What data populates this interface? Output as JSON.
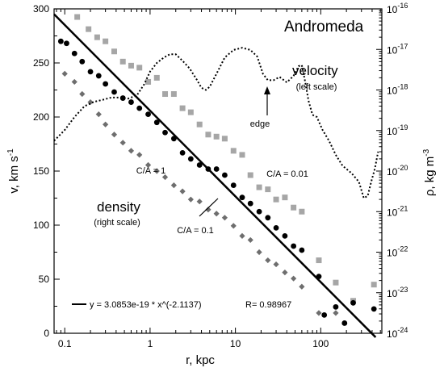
{
  "chart_data": {
    "type": "scatter",
    "title": "Andromeda",
    "xlabel": "r, kpc",
    "ylabel_left": "v, km s",
    "ylabel_left_exp": "-1",
    "ylabel_right": "ρ, kg m",
    "ylabel_right_exp": "-3",
    "x_scale": "log",
    "xlim": [
      0.075,
      520
    ],
    "ylim_left": [
      0,
      300
    ],
    "ylim_right_exp": [
      -24,
      -16
    ],
    "x_ticks": [
      {
        "value": 0.1,
        "label": "0.1"
      },
      {
        "value": 1,
        "label": "1"
      },
      {
        "value": 10,
        "label": "10"
      },
      {
        "value": 100,
        "label": "100"
      }
    ],
    "y_left_ticks": [
      "0",
      "50",
      "100",
      "150",
      "200",
      "250",
      "300"
    ],
    "y_right_ticks": [
      {
        "exp": -24,
        "label": "-24"
      },
      {
        "exp": -23,
        "label": "-23"
      },
      {
        "exp": -22,
        "label": "-22"
      },
      {
        "exp": -21,
        "label": "-21"
      },
      {
        "exp": -20,
        "label": "-20"
      },
      {
        "exp": -19,
        "label": "-19"
      },
      {
        "exp": -18,
        "label": "-18"
      },
      {
        "exp": -17,
        "label": "-17"
      },
      {
        "exp": -16,
        "label": "-16"
      }
    ],
    "tick_base": "10",
    "series": [
      {
        "name": "C/A = 0.01",
        "marker": "square",
        "color": "#a6a6a6",
        "axis": "right",
        "points": [
          [
            0.14,
            -16.2
          ],
          [
            0.19,
            -16.5
          ],
          [
            0.24,
            -16.7
          ],
          [
            0.3,
            -16.8
          ],
          [
            0.38,
            -17.05
          ],
          [
            0.48,
            -17.3
          ],
          [
            0.6,
            -17.4
          ],
          [
            0.75,
            -17.45
          ],
          [
            0.95,
            -17.8
          ],
          [
            1.2,
            -17.7
          ],
          [
            1.5,
            -18.1
          ],
          [
            1.9,
            -18.1
          ],
          [
            2.4,
            -18.45
          ],
          [
            3.0,
            -18.55
          ],
          [
            3.8,
            -18.85
          ],
          [
            4.8,
            -19.1
          ],
          [
            6.0,
            -19.15
          ],
          [
            7.5,
            -19.2
          ],
          [
            9.5,
            -19.5
          ],
          [
            12,
            -19.6
          ],
          [
            15,
            -20.1
          ],
          [
            19,
            -20.4
          ],
          [
            24,
            -20.45
          ],
          [
            30,
            -20.7
          ],
          [
            38,
            -20.65
          ],
          [
            48,
            -20.9
          ],
          [
            60,
            -21.0
          ],
          [
            95,
            -22.2
          ],
          [
            150,
            -22.75
          ],
          [
            240,
            -23.2
          ],
          [
            420,
            -22.8
          ]
        ]
      },
      {
        "name": "C/A = 0.1",
        "marker": "circle",
        "color": "#000000",
        "axis": "right",
        "points": [
          [
            0.09,
            -16.8
          ],
          [
            0.105,
            -16.85
          ],
          [
            0.13,
            -17.1
          ],
          [
            0.16,
            -17.3
          ],
          [
            0.2,
            -17.55
          ],
          [
            0.25,
            -17.65
          ],
          [
            0.3,
            -17.85
          ],
          [
            0.38,
            -18.05
          ],
          [
            0.48,
            -18.2
          ],
          [
            0.6,
            -18.3
          ],
          [
            0.75,
            -18.45
          ],
          [
            0.95,
            -18.6
          ],
          [
            1.2,
            -18.8
          ],
          [
            1.5,
            -19.05
          ],
          [
            1.9,
            -19.2
          ],
          [
            2.4,
            -19.55
          ],
          [
            3.0,
            -19.7
          ],
          [
            3.8,
            -19.85
          ],
          [
            4.8,
            -19.95
          ],
          [
            6.0,
            -19.95
          ],
          [
            7.5,
            -20.1
          ],
          [
            9.5,
            -20.35
          ],
          [
            12,
            -20.65
          ],
          [
            15,
            -20.8
          ],
          [
            19,
            -21.0
          ],
          [
            24,
            -21.15
          ],
          [
            30,
            -21.4
          ],
          [
            38,
            -21.6
          ],
          [
            48,
            -21.85
          ],
          [
            60,
            -21.95
          ],
          [
            95,
            -22.6
          ],
          [
            110,
            -23.55
          ],
          [
            150,
            -23.35
          ],
          [
            190,
            -23.75
          ],
          [
            240,
            -23.25
          ],
          [
            420,
            -23.4
          ]
        ]
      },
      {
        "name": "C/A = 1",
        "marker": "diamond",
        "color": "#6e6e6e",
        "axis": "right",
        "points": [
          [
            0.1,
            -17.6
          ],
          [
            0.13,
            -17.8
          ],
          [
            0.16,
            -18.1
          ],
          [
            0.2,
            -18.3
          ],
          [
            0.25,
            -18.6
          ],
          [
            0.3,
            -18.85
          ],
          [
            0.38,
            -19.1
          ],
          [
            0.48,
            -19.3
          ],
          [
            0.6,
            -19.5
          ],
          [
            0.75,
            -19.6
          ],
          [
            0.95,
            -19.85
          ],
          [
            1.2,
            -20.0
          ],
          [
            1.5,
            -20.15
          ],
          [
            1.9,
            -20.35
          ],
          [
            2.4,
            -20.5
          ],
          [
            3.0,
            -20.7
          ],
          [
            3.8,
            -20.75
          ],
          [
            4.8,
            -20.95
          ],
          [
            6.0,
            -21.05
          ],
          [
            7.5,
            -21.15
          ],
          [
            9.5,
            -21.35
          ],
          [
            12,
            -21.6
          ],
          [
            15,
            -21.7
          ],
          [
            19,
            -22.0
          ],
          [
            24,
            -22.2
          ],
          [
            30,
            -22.3
          ],
          [
            38,
            -22.5
          ],
          [
            48,
            -22.65
          ],
          [
            60,
            -22.85
          ],
          [
            95,
            -23.5
          ],
          [
            150,
            -23.5
          ]
        ]
      }
    ],
    "velocity_curve": {
      "name": "velocity",
      "axis": "left",
      "style": "dotted",
      "points": [
        [
          0.075,
          178
        ],
        [
          0.1,
          188
        ],
        [
          0.13,
          200
        ],
        [
          0.17,
          210
        ],
        [
          0.22,
          214
        ],
        [
          0.28,
          216
        ],
        [
          0.35,
          218
        ],
        [
          0.45,
          218
        ],
        [
          0.55,
          217
        ],
        [
          0.7,
          220
        ],
        [
          0.85,
          230
        ],
        [
          1.0,
          242
        ],
        [
          1.2,
          250
        ],
        [
          1.45,
          255
        ],
        [
          1.7,
          258
        ],
        [
          2.0,
          258
        ],
        [
          2.4,
          252
        ],
        [
          2.9,
          245
        ],
        [
          3.5,
          235
        ],
        [
          4.0,
          227
        ],
        [
          4.5,
          225
        ],
        [
          5.0,
          228
        ],
        [
          6.0,
          240
        ],
        [
          7.5,
          255
        ],
        [
          9.5,
          262
        ],
        [
          12,
          264
        ],
        [
          15,
          262
        ],
        [
          18,
          256
        ],
        [
          21,
          240
        ],
        [
          24,
          234
        ],
        [
          28,
          234
        ],
        [
          33,
          237
        ],
        [
          40,
          232
        ],
        [
          48,
          238
        ],
        [
          55,
          247
        ],
        [
          60,
          248
        ],
        [
          66,
          232
        ],
        [
          72,
          215
        ],
        [
          80,
          202
        ],
        [
          90,
          200
        ],
        [
          105,
          188
        ],
        [
          125,
          178
        ],
        [
          150,
          165
        ],
        [
          180,
          155
        ],
        [
          230,
          148
        ],
        [
          280,
          140
        ],
        [
          320,
          125
        ],
        [
          355,
          127
        ],
        [
          390,
          140
        ],
        [
          430,
          152
        ],
        [
          470,
          168
        ]
      ]
    },
    "fit_line": {
      "a": 3.0853e-19,
      "b": -2.1137,
      "x_range": [
        0.075,
        440
      ]
    },
    "legend": {
      "equation": "y = 3.0853e-19 * x^(-2.1137)",
      "r_value": "R= 0.98967",
      "placement": "bottom-left"
    },
    "annotations": {
      "velocity": "velocity",
      "velocity_sub": "(left scale)",
      "density": "density",
      "density_sub": "(right scale)",
      "edge": "edge",
      "ca1": "C/A = 1",
      "ca01": "C/A = 0.1",
      "ca001": "C/A = 0.01"
    },
    "grid": false
  }
}
